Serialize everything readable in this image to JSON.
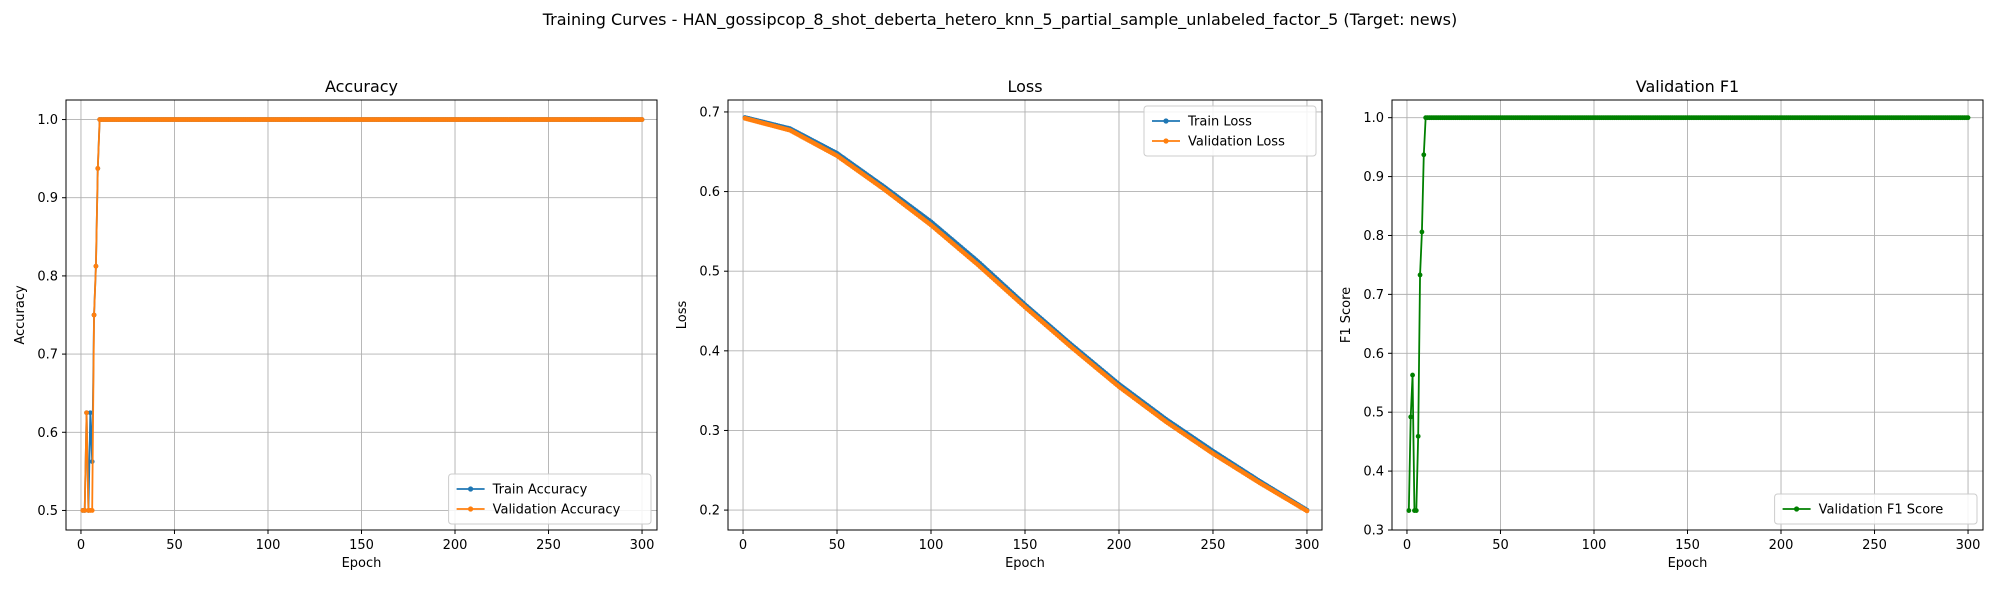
{
  "figure_title": "Training Curves - HAN_gossipcop_8_shot_deberta_hetero_knn_5_partial_sample_unlabeled_factor_5 (Target: news)",
  "chart_data": [
    {
      "type": "line",
      "title": "Accuracy",
      "xlabel": "Epoch",
      "ylabel": "Accuracy",
      "xlim": [
        -8,
        308
      ],
      "ylim": [
        0.475,
        1.025
      ],
      "xticks": [
        0,
        50,
        100,
        150,
        200,
        250,
        300
      ],
      "yticks": [
        0.5,
        0.6,
        0.7,
        0.8,
        0.9,
        1.0
      ],
      "ytick_labels": [
        "0.5",
        "0.6",
        "0.7",
        "0.8",
        "0.9",
        "1.0"
      ],
      "grid": true,
      "legend_position": "lower-right",
      "epochs": 300,
      "series": [
        {
          "name": "Train Accuracy",
          "color": "#1f77b4",
          "start_values": [
            0.5,
            0.5,
            0.625,
            0.5,
            0.625,
            0.5625,
            0.75,
            0.8125,
            0.9375
          ],
          "plateau_from": 10,
          "plateau_value": 1.0
        },
        {
          "name": "Validation Accuracy",
          "color": "#ff7f0e",
          "start_values": [
            0.5,
            0.5,
            0.625,
            0.5,
            0.5,
            0.5,
            0.75,
            0.8125,
            0.9375
          ],
          "plateau_from": 10,
          "plateau_value": 1.0
        }
      ]
    },
    {
      "type": "line",
      "title": "Loss",
      "xlabel": "Epoch",
      "ylabel": "Loss",
      "xlim": [
        -8,
        308
      ],
      "ylim": [
        0.175,
        0.715
      ],
      "xticks": [
        0,
        50,
        100,
        150,
        200,
        250,
        300
      ],
      "yticks": [
        0.2,
        0.3,
        0.4,
        0.5,
        0.6,
        0.7
      ],
      "ytick_labels": [
        "0.2",
        "0.3",
        "0.4",
        "0.5",
        "0.6",
        "0.7"
      ],
      "grid": true,
      "legend_position": "top-right",
      "epochs": 300,
      "series": [
        {
          "name": "Train Loss",
          "color": "#1f77b4",
          "epoch_values": [
            [
              1,
              0.693
            ],
            [
              25,
              0.679
            ],
            [
              50,
              0.648
            ],
            [
              75,
              0.606
            ],
            [
              100,
              0.562
            ],
            [
              125,
              0.512
            ],
            [
              150,
              0.458
            ],
            [
              175,
              0.407
            ],
            [
              200,
              0.358
            ],
            [
              225,
              0.314
            ],
            [
              250,
              0.274
            ],
            [
              275,
              0.236
            ],
            [
              300,
              0.2
            ]
          ]
        },
        {
          "name": "Validation Loss",
          "color": "#ff7f0e",
          "epoch_values": [
            [
              1,
              0.692
            ],
            [
              25,
              0.677
            ],
            [
              50,
              0.645
            ],
            [
              75,
              0.603
            ],
            [
              100,
              0.558
            ],
            [
              125,
              0.508
            ],
            [
              150,
              0.455
            ],
            [
              175,
              0.404
            ],
            [
              200,
              0.355
            ],
            [
              225,
              0.311
            ],
            [
              250,
              0.271
            ],
            [
              275,
              0.234
            ],
            [
              300,
              0.199
            ]
          ]
        }
      ]
    },
    {
      "type": "line",
      "title": "Validation F1",
      "xlabel": "Epoch",
      "ylabel": "F1 Score",
      "xlim": [
        -8,
        308
      ],
      "ylim": [
        0.3,
        1.03
      ],
      "xticks": [
        0,
        50,
        100,
        150,
        200,
        250,
        300
      ],
      "yticks": [
        0.3,
        0.4,
        0.5,
        0.6,
        0.7,
        0.8,
        0.9,
        1.0
      ],
      "ytick_labels": [
        "0.3",
        "0.4",
        "0.5",
        "0.6",
        "0.7",
        "0.8",
        "0.9",
        "1.0"
      ],
      "grid": true,
      "legend_position": "lower-right",
      "epochs": 300,
      "series": [
        {
          "name": "Validation F1 Score",
          "color": "#008000",
          "start_values": [
            0.333,
            0.492,
            0.563,
            0.333,
            0.333,
            0.459,
            0.733,
            0.806,
            0.937
          ],
          "plateau_from": 10,
          "plateau_value": 1.0
        }
      ]
    }
  ]
}
